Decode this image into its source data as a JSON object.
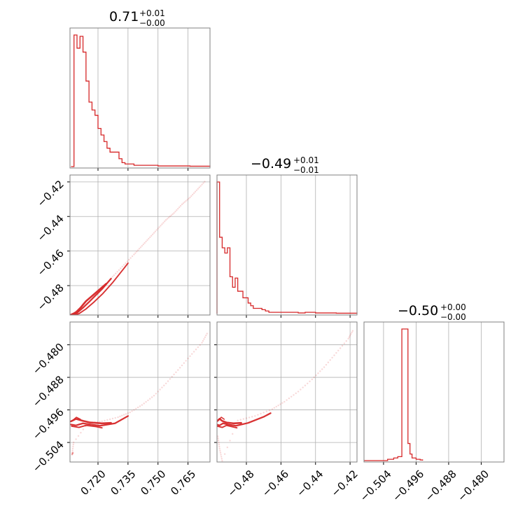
{
  "chart_data": {
    "type": "corner",
    "parameters": [
      {
        "id": "p0",
        "title": {
          "value": "0.71",
          "plus": "+0.01",
          "minus": "−0.00"
        },
        "range": [
          0.706,
          0.776
        ],
        "ticks": [
          0.72,
          0.735,
          0.75,
          0.765
        ],
        "tick_labels": [
          "0.720",
          "0.735",
          "0.750",
          "0.765"
        ]
      },
      {
        "id": "p1",
        "title": {
          "value": "−0.49",
          "plus": "+0.01",
          "minus": "−0.01"
        },
        "range": [
          -0.497,
          -0.416
        ],
        "ticks": [
          -0.48,
          -0.46,
          -0.44,
          -0.42
        ],
        "tick_labels": [
          "−0.48",
          "−0.46",
          "−0.44",
          "−0.42"
        ]
      },
      {
        "id": "p2",
        "title": {
          "value": "−0.50",
          "plus": "+0.00",
          "minus": "−0.00"
        },
        "range": [
          -0.5088,
          -0.4744
        ],
        "ticks": [
          -0.504,
          -0.496,
          -0.488,
          -0.48
        ],
        "tick_labels": [
          "−0.504",
          "−0.496",
          "−0.488",
          "−0.480"
        ]
      }
    ],
    "color": "#d62728",
    "grid": true,
    "histograms": [
      {
        "param": "p0",
        "bin_edges": [
          0.7065,
          0.708,
          0.7095,
          0.711,
          0.7125,
          0.714,
          0.7155,
          0.717,
          0.7185,
          0.72,
          0.7215,
          0.723,
          0.7245,
          0.726,
          0.7275,
          0.729,
          0.7305,
          0.732,
          0.7335,
          0.735,
          0.738,
          0.741,
          0.745,
          0.75,
          0.754,
          0.758,
          0.762,
          0.766,
          0.77,
          0.776
        ],
        "counts": [
          0,
          100,
          90,
          99,
          87,
          65,
          49,
          43,
          39,
          29,
          24,
          19,
          14,
          11,
          11,
          11,
          6,
          3,
          2,
          2,
          1,
          1,
          1,
          0.5,
          0.5,
          0.5,
          0.5,
          0.3,
          0.3
        ]
      },
      {
        "param": "p1",
        "bin_edges": [
          -0.497,
          -0.4955,
          -0.494,
          -0.4925,
          -0.491,
          -0.4895,
          -0.488,
          -0.4865,
          -0.485,
          -0.4835,
          -0.482,
          -0.4805,
          -0.479,
          -0.4775,
          -0.476,
          -0.4745,
          -0.473,
          -0.471,
          -0.469,
          -0.467,
          -0.465,
          -0.462,
          -0.458,
          -0.454,
          -0.45,
          -0.446,
          -0.44,
          -0.434,
          -0.428,
          -0.42,
          -0.416
        ],
        "counts": [
          100,
          58,
          50,
          46,
          50,
          28,
          20,
          27,
          17,
          17,
          12,
          12,
          8,
          6,
          4,
          4,
          4,
          3,
          2,
          1,
          1,
          1,
          1,
          1,
          0.5,
          1,
          0.5,
          0.5,
          0.3,
          0.3
        ]
      },
      {
        "param": "p2",
        "bin_edges": [
          -0.5088,
          -0.503,
          -0.5015,
          -0.5005,
          -0.4995,
          -0.499,
          -0.4985,
          -0.498,
          -0.4975,
          -0.497,
          -0.496,
          -0.495,
          -0.4944
        ],
        "counts": [
          0,
          1,
          2,
          3,
          100,
          100,
          100,
          13,
          5,
          2,
          1,
          0.5,
          0
        ]
      }
    ],
    "joint_panels": [
      {
        "x": "p0",
        "y": "p1",
        "scatter": [
          [
            0.708,
            -0.496
          ],
          [
            0.709,
            -0.495
          ],
          [
            0.711,
            -0.493
          ],
          [
            0.713,
            -0.49
          ],
          [
            0.716,
            -0.487
          ],
          [
            0.72,
            -0.483
          ],
          [
            0.724,
            -0.479
          ],
          [
            0.728,
            -0.474
          ],
          [
            0.733,
            -0.468
          ],
          [
            0.738,
            -0.462
          ],
          [
            0.742,
            -0.457
          ],
          [
            0.746,
            -0.452
          ],
          [
            0.75,
            -0.447
          ],
          [
            0.754,
            -0.442
          ],
          [
            0.758,
            -0.438
          ],
          [
            0.762,
            -0.433
          ],
          [
            0.766,
            -0.429
          ],
          [
            0.77,
            -0.424
          ],
          [
            0.774,
            -0.419
          ]
        ],
        "contours": [
          [
            [
              0.7065,
              -0.4968
            ],
            [
              0.709,
              -0.4955
            ],
            [
              0.7115,
              -0.4925
            ],
            [
              0.714,
              -0.489
            ],
            [
              0.717,
              -0.486
            ],
            [
              0.72,
              -0.483
            ],
            [
              0.724,
              -0.479
            ]
          ],
          [
            [
              0.7068,
              -0.4972
            ],
            [
              0.7095,
              -0.4958
            ],
            [
              0.7125,
              -0.4928
            ],
            [
              0.7155,
              -0.4895
            ],
            [
              0.7185,
              -0.486
            ],
            [
              0.722,
              -0.482
            ],
            [
              0.7265,
              -0.476
            ]
          ],
          [
            [
              0.7072,
              -0.4975
            ],
            [
              0.7105,
              -0.4962
            ],
            [
              0.714,
              -0.4935
            ],
            [
              0.718,
              -0.4895
            ],
            [
              0.7225,
              -0.4845
            ],
            [
              0.7275,
              -0.478
            ],
            [
              0.733,
              -0.47
            ],
            [
              0.735,
              -0.467
            ]
          ]
        ]
      },
      {
        "x": "p0",
        "y": "p2",
        "scatter": [
          [
            0.7075,
            -0.5065
          ],
          [
            0.707,
            -0.507
          ],
          [
            0.7078,
            -0.504
          ],
          [
            0.715,
            -0.4992
          ],
          [
            0.722,
            -0.4988
          ],
          [
            0.73,
            -0.4978
          ],
          [
            0.736,
            -0.4966
          ],
          [
            0.742,
            -0.4948
          ],
          [
            0.748,
            -0.4925
          ],
          [
            0.754,
            -0.4895
          ],
          [
            0.76,
            -0.4862
          ],
          [
            0.766,
            -0.4828
          ],
          [
            0.772,
            -0.4795
          ],
          [
            0.775,
            -0.4768
          ]
        ],
        "contours": [
          [
            [
              0.7065,
              -0.4988
            ],
            [
              0.709,
              -0.4982
            ],
            [
              0.7125,
              -0.4987
            ],
            [
              0.716,
              -0.4991
            ],
            [
              0.722,
              -0.4993
            ],
            [
              0.7265,
              -0.4992
            ]
          ],
          [
            [
              0.7065,
              -0.4996
            ],
            [
              0.709,
              -0.4998
            ],
            [
              0.7125,
              -0.4993
            ],
            [
              0.7165,
              -0.4996
            ],
            [
              0.721,
              -0.4999
            ],
            [
              0.7285,
              -0.4993
            ],
            [
              0.735,
              -0.4975
            ]
          ],
          [
            [
              0.7068,
              -0.5
            ],
            [
              0.7105,
              -0.5003
            ],
            [
              0.714,
              -0.4998
            ],
            [
              0.719,
              -0.5001
            ],
            [
              0.722,
              -0.5004
            ]
          ],
          [
            [
              0.7075,
              -0.4985
            ],
            [
              0.7092,
              -0.4978
            ],
            [
              0.7112,
              -0.4983
            ]
          ]
        ]
      },
      {
        "x": "p1",
        "y": "p2",
        "scatter": [
          [
            -0.4965,
            -0.5025
          ],
          [
            -0.4955,
            -0.5055
          ],
          [
            -0.494,
            -0.5085
          ],
          [
            -0.485,
            -0.4986
          ],
          [
            -0.475,
            -0.4975
          ],
          [
            -0.465,
            -0.4958
          ],
          [
            -0.458,
            -0.494
          ],
          [
            -0.45,
            -0.4915
          ],
          [
            -0.442,
            -0.4885
          ],
          [
            -0.435,
            -0.4855
          ],
          [
            -0.428,
            -0.482
          ],
          [
            -0.421,
            -0.4785
          ],
          [
            -0.418,
            -0.4762
          ]
        ],
        "contours": [
          [
            [
              -0.497,
              -0.4988
            ],
            [
              -0.4955,
              -0.4982
            ],
            [
              -0.494,
              -0.4987
            ],
            [
              -0.4915,
              -0.4991
            ],
            [
              -0.4875,
              -0.4993
            ],
            [
              -0.483,
              -0.4992
            ]
          ],
          [
            [
              -0.497,
              -0.4996
            ],
            [
              -0.4955,
              -0.4998
            ],
            [
              -0.4935,
              -0.4993
            ],
            [
              -0.4905,
              -0.4996
            ],
            [
              -0.486,
              -0.4999
            ],
            [
              -0.479,
              -0.4992
            ],
            [
              -0.47,
              -0.4977
            ],
            [
              -0.466,
              -0.4968
            ]
          ],
          [
            [
              -0.4968,
              -0.5
            ],
            [
              -0.494,
              -0.5003
            ],
            [
              -0.4915,
              -0.4998
            ],
            [
              -0.4885,
              -0.5001
            ],
            [
              -0.4855,
              -0.5004
            ]
          ],
          [
            [
              -0.4962,
              -0.4985
            ],
            [
              -0.4945,
              -0.4978
            ],
            [
              -0.4928,
              -0.4983
            ]
          ]
        ]
      }
    ]
  }
}
